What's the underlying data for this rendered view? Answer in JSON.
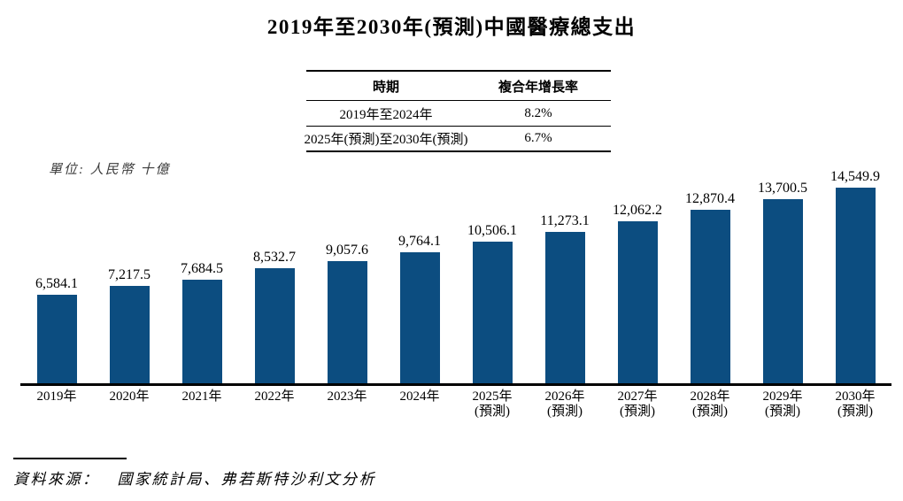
{
  "title": "2019年至2030年(預測)中國醫療總支出",
  "cagr_table": {
    "headers": [
      "時期",
      "複合年增長率"
    ],
    "rows": [
      {
        "period": "2019年至2024年",
        "cagr": "8.2%"
      },
      {
        "period": "2025年(預測)至2030年(預測)",
        "cagr": "6.7%"
      }
    ]
  },
  "unit_label": "單位: 人民幣 十億",
  "source": {
    "label": "資料來源：",
    "text": "國家統計局、弗若斯特沙利文分析"
  },
  "chart_data": {
    "type": "bar",
    "title": "2019年至2030年(預測)中國醫療總支出",
    "unit": "人民幣 十億 (RMB billion)",
    "categories": [
      "2019年",
      "2020年",
      "2021年",
      "2022年",
      "2023年",
      "2024年",
      "2025年(預測)",
      "2026年(預測)",
      "2027年(預測)",
      "2028年(預測)",
      "2029年(預測)",
      "2030年(預測)"
    ],
    "values": [
      6584.1,
      7217.5,
      7684.5,
      8532.7,
      9057.6,
      9764.1,
      10506.1,
      11273.1,
      12062.2,
      12870.4,
      13700.5,
      14549.9
    ],
    "value_labels": [
      "6,584.1",
      "7,217.5",
      "7,684.5",
      "8,532.7",
      "9,057.6",
      "9,764.1",
      "10,506.1",
      "11,273.1",
      "12,062.2",
      "12,870.4",
      "13,700.5",
      "14,549.9"
    ],
    "bar_color": "#0C4D80",
    "ylim": [
      0,
      15000
    ],
    "grid": false,
    "legend": false,
    "annotations": [
      {
        "period": "2019年至2024年",
        "cagr": "8.2%"
      },
      {
        "period": "2025年(預測)至2030年(預測)",
        "cagr": "6.7%"
      }
    ]
  }
}
